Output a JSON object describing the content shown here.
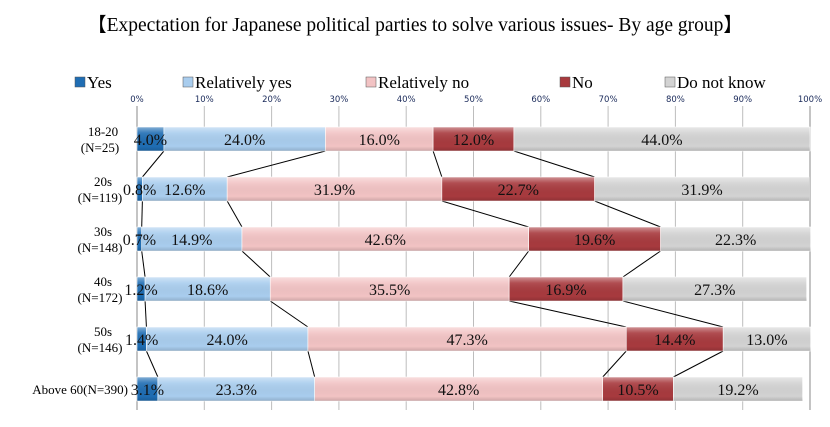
{
  "chart_data": {
    "type": "bar",
    "stacked": true,
    "orientation": "horizontal",
    "title": "【Expectation for Japanese political parties to solve various issues- By age group】",
    "xlim": [
      0,
      100
    ],
    "xticks": [
      "0%",
      "10%",
      "20%",
      "30%",
      "40%",
      "50%",
      "60%",
      "70%",
      "80%",
      "90%",
      "100%"
    ],
    "legend_position": "top",
    "grid": true,
    "categories": [
      [
        "18-20",
        "(N=25)"
      ],
      [
        "20s",
        "(N=119)"
      ],
      [
        "30s",
        "(N=148)"
      ],
      [
        "40s",
        "(N=172)"
      ],
      [
        "50s",
        "(N=146)"
      ],
      [
        "Above 60(N=390)"
      ]
    ],
    "series": [
      {
        "name": "Yes",
        "color": "#1f6db3",
        "values": [
          4.0,
          0.8,
          0.7,
          1.2,
          1.4,
          3.1
        ]
      },
      {
        "name": "Relatively yes",
        "color": "#a9cdee",
        "values": [
          24.0,
          12.6,
          14.9,
          18.6,
          24.0,
          23.3
        ]
      },
      {
        "name": "Relatively no",
        "color": "#f2c3c4",
        "values": [
          16.0,
          31.9,
          42.6,
          35.5,
          47.3,
          42.8
        ]
      },
      {
        "name": "No",
        "color": "#a83a3e",
        "values": [
          12.0,
          22.7,
          19.6,
          16.9,
          14.4,
          10.5
        ]
      },
      {
        "name": "Do not know",
        "color": "#d3d3d3",
        "values": [
          44.0,
          31.9,
          22.3,
          27.3,
          13.0,
          19.2
        ]
      }
    ],
    "labels": [
      [
        "4.0%",
        "24.0%",
        "16.0%",
        "12.0%",
        "44.0%"
      ],
      [
        "0.8%",
        "12.6%",
        "31.9%",
        "22.7%",
        "31.9%"
      ],
      [
        "0.7%",
        "14.9%",
        "42.6%",
        "19.6%",
        "22.3%"
      ],
      [
        "1.2%",
        "18.6%",
        "35.5%",
        "16.9%",
        "27.3%"
      ],
      [
        "1.4%",
        "24.0%",
        "47.3%",
        "14.4%",
        "13.0%"
      ],
      [
        "3.1%",
        "23.3%",
        "42.8%",
        "10.5%",
        "19.2%"
      ]
    ]
  }
}
